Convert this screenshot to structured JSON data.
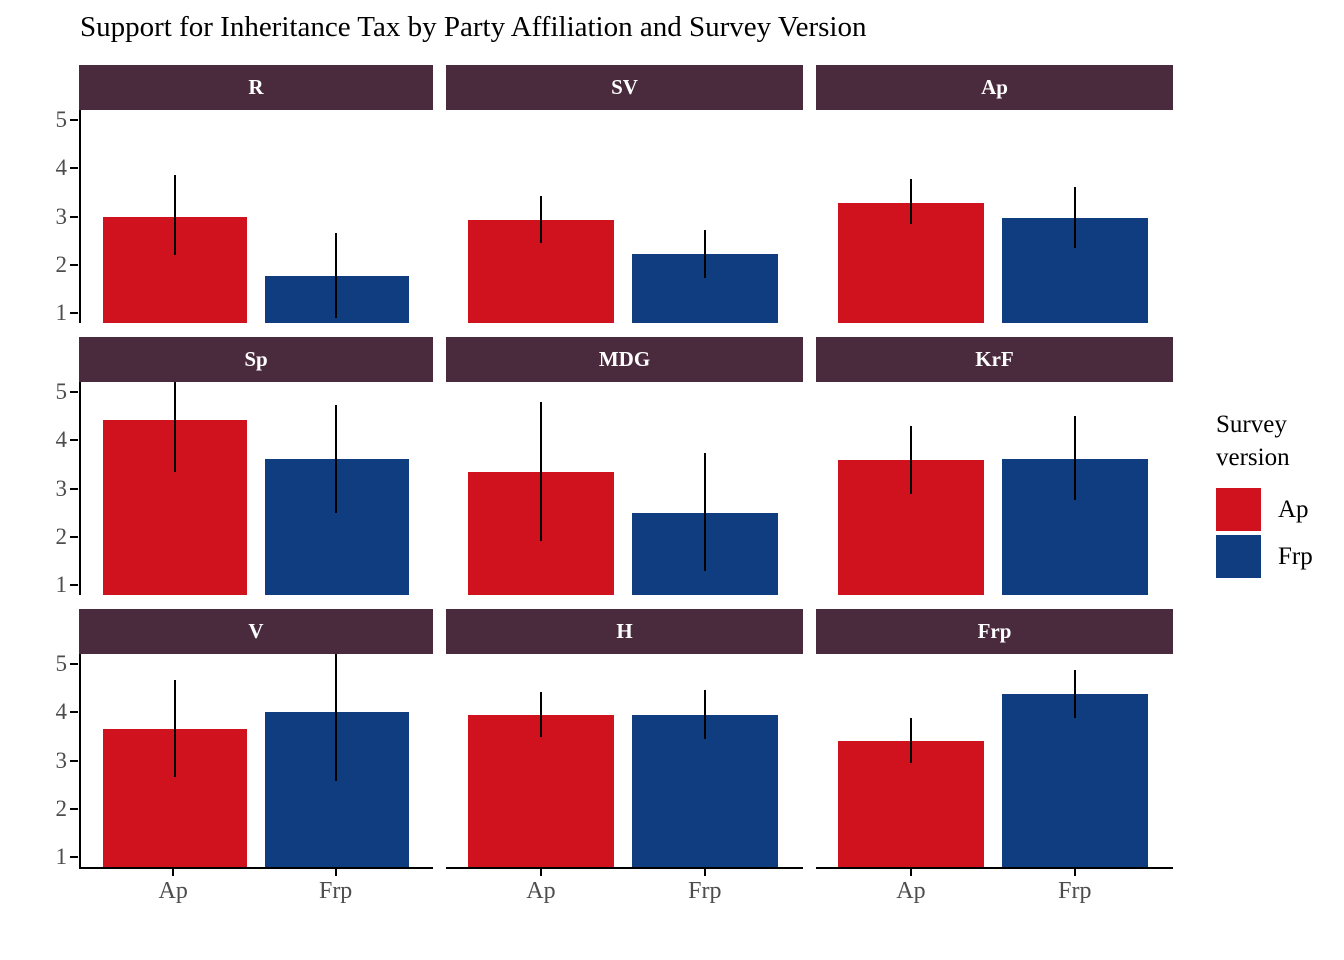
{
  "title": "Support for Inheritance Tax by Party Affiliation and Survey Version",
  "colors": {
    "bar_ap": "#d0121e",
    "bar_frp": "#0f3d80",
    "strip_bg": "#4a2b3e",
    "strip_text": "#ffffff",
    "axis_text": "#4d4d4d",
    "axis_line": "#000000"
  },
  "legend": {
    "title": "Survey version",
    "items": [
      {
        "label": "Ap",
        "color": "#d0121e"
      },
      {
        "label": "Frp",
        "color": "#0f3d80"
      }
    ]
  },
  "chart_data": {
    "type": "bar",
    "title": "Support for Inheritance Tax by Party Affiliation and Survey Version",
    "xlabel": "",
    "ylabel": "",
    "x_categories": [
      "Ap",
      "Frp"
    ],
    "y_ticks": [
      5,
      4,
      3,
      2,
      1
    ],
    "ylim": [
      1,
      5
    ],
    "grid": false,
    "legend_title": "Survey version",
    "legend_position": "right",
    "error_bars": true,
    "facet_layout": "3x3",
    "facets": [
      {
        "label": "R",
        "bars": [
          {
            "series": "Ap",
            "value": 3.0,
            "ci": [
              2.2,
              3.85
            ]
          },
          {
            "series": "Frp",
            "value": 1.77,
            "ci": [
              0.9,
              2.65
            ]
          }
        ]
      },
      {
        "label": "SV",
        "bars": [
          {
            "series": "Ap",
            "value": 2.92,
            "ci": [
              2.45,
              3.42
            ]
          },
          {
            "series": "Frp",
            "value": 2.22,
            "ci": [
              1.72,
              2.73
            ]
          }
        ]
      },
      {
        "label": "Ap",
        "bars": [
          {
            "series": "Ap",
            "value": 3.28,
            "ci": [
              2.85,
              3.78
            ]
          },
          {
            "series": "Frp",
            "value": 2.97,
            "ci": [
              2.35,
              3.6
            ]
          }
        ]
      },
      {
        "label": "Sp",
        "bars": [
          {
            "series": "Ap",
            "value": 4.42,
            "ci": [
              3.35,
              5.3
            ]
          },
          {
            "series": "Frp",
            "value": 3.6,
            "ci": [
              2.5,
              4.72
            ]
          }
        ]
      },
      {
        "label": "MDG",
        "bars": [
          {
            "series": "Ap",
            "value": 3.35,
            "ci": [
              1.92,
              4.78
            ]
          },
          {
            "series": "Frp",
            "value": 2.5,
            "ci": [
              1.3,
              3.73
            ]
          }
        ]
      },
      {
        "label": "KrF",
        "bars": [
          {
            "series": "Ap",
            "value": 3.58,
            "ci": [
              2.88,
              4.3
            ]
          },
          {
            "series": "Frp",
            "value": 3.62,
            "ci": [
              2.77,
              4.5
            ]
          }
        ]
      },
      {
        "label": "V",
        "bars": [
          {
            "series": "Ap",
            "value": 3.65,
            "ci": [
              2.65,
              4.67
            ]
          },
          {
            "series": "Frp",
            "value": 4.0,
            "ci": [
              2.57,
              5.3
            ]
          }
        ]
      },
      {
        "label": "H",
        "bars": [
          {
            "series": "Ap",
            "value": 3.95,
            "ci": [
              3.48,
              4.42
            ]
          },
          {
            "series": "Frp",
            "value": 3.93,
            "ci": [
              3.44,
              4.45
            ]
          }
        ]
      },
      {
        "label": "Frp",
        "bars": [
          {
            "series": "Ap",
            "value": 3.4,
            "ci": [
              2.95,
              3.87
            ]
          },
          {
            "series": "Frp",
            "value": 4.37,
            "ci": [
              3.87,
              4.87
            ]
          }
        ]
      }
    ]
  }
}
